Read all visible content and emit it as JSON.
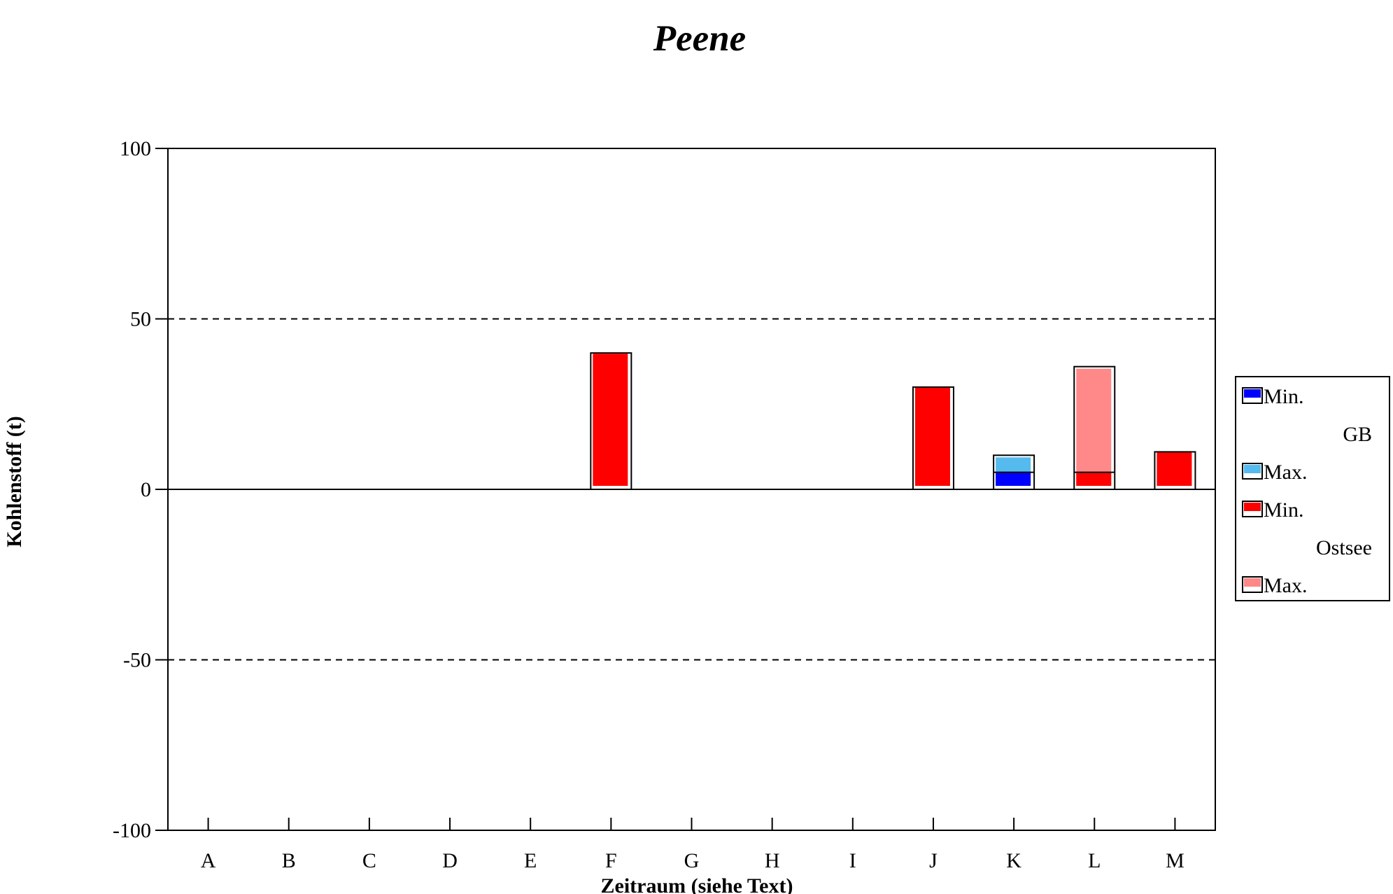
{
  "chart_data": {
    "type": "bar",
    "title": "Peene",
    "xlabel": "Zeitraum  (siehe Text)",
    "ylabel": "Kohlenstoff  (t)",
    "ylim": [
      -100,
      100
    ],
    "yticks": [
      100,
      50,
      0,
      -50,
      -100
    ],
    "ytick_labels": [
      "100",
      "50",
      "0",
      "-50",
      "-100"
    ],
    "grid": "dashed at 50 and -50",
    "categories": [
      "A",
      "B",
      "C",
      "D",
      "E",
      "F",
      "G",
      "H",
      "I",
      "J",
      "K",
      "L",
      "M"
    ],
    "series": [
      {
        "name": "GB Min.",
        "color": "#0000ff",
        "values": [
          0,
          0,
          0,
          0,
          0,
          0,
          0,
          0,
          0,
          0,
          5,
          0,
          0
        ]
      },
      {
        "name": "GB Max.",
        "color": "#55bbee",
        "values": [
          0,
          0,
          0,
          0,
          0,
          0,
          0,
          0,
          0,
          0,
          10,
          0,
          0
        ]
      },
      {
        "name": "Ostsee Min.",
        "color": "#ff0000",
        "values": [
          0,
          0,
          0,
          0,
          0,
          40,
          0,
          0,
          0,
          30,
          0,
          5,
          11
        ]
      },
      {
        "name": "Ostsee Max.",
        "color": "#ff8888",
        "values": [
          0,
          0,
          0,
          0,
          0,
          40,
          0,
          0,
          0,
          30,
          0,
          36,
          11
        ]
      }
    ],
    "legend": {
      "placement": "right",
      "groups": [
        {
          "name": "GB",
          "min_label": "Min.",
          "max_label": "Max.",
          "min_color": "#0000ff",
          "max_color": "#55bbee"
        },
        {
          "name": "Ostsee",
          "min_label": "Min.",
          "max_label": "Max.",
          "min_color": "#ff0000",
          "max_color": "#ff8888"
        }
      ]
    }
  }
}
